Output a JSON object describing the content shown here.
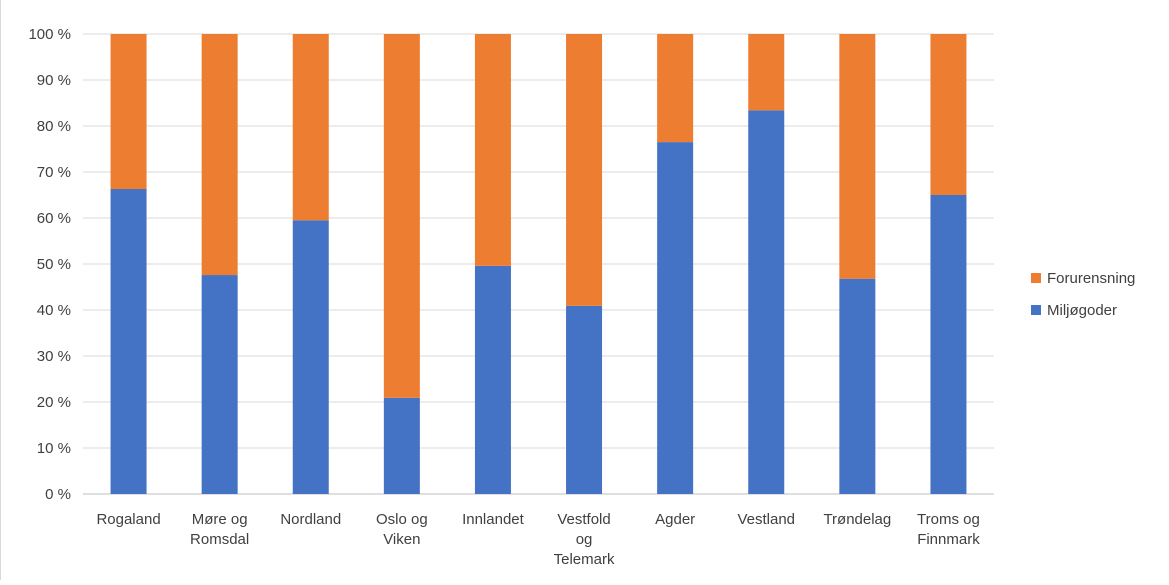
{
  "chart_data": {
    "type": "bar",
    "stacked": true,
    "categories": [
      [
        "Rogaland"
      ],
      [
        "Møre og",
        "Romsdal"
      ],
      [
        "Nordland"
      ],
      [
        "Oslo og",
        "Viken"
      ],
      [
        "Innlandet"
      ],
      [
        "Vestfold",
        "og",
        "Telemark"
      ],
      [
        "Agder"
      ],
      [
        "Vestland"
      ],
      [
        "Trøndelag"
      ],
      [
        "Troms og",
        "Finnmark"
      ]
    ],
    "series": [
      {
        "name": "Miljøgoder",
        "color": "#4472C4",
        "values": [
          66.3,
          47.6,
          59.5,
          20.9,
          49.6,
          40.9,
          76.5,
          83.4,
          46.8,
          65.0
        ]
      },
      {
        "name": "Forurensning",
        "color": "#ED7D31",
        "values": [
          33.7,
          52.4,
          40.5,
          79.1,
          50.4,
          59.1,
          23.5,
          16.6,
          53.2,
          35.0
        ]
      }
    ],
    "yticks": [
      "0 %",
      "10 %",
      "20 %",
      "30 %",
      "40 %",
      "50 %",
      "60 %",
      "70 %",
      "80 %",
      "90 %",
      "100 %"
    ],
    "ylim": [
      0,
      100
    ],
    "grid": true,
    "legend_position": "right",
    "legend_order": [
      "Forurensning",
      "Miljøgoder"
    ]
  }
}
